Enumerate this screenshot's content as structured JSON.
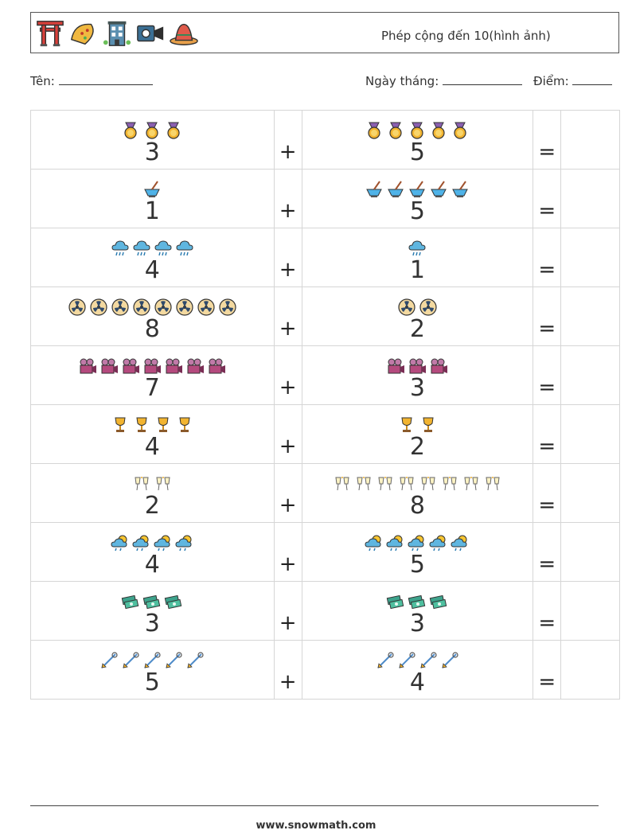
{
  "header": {
    "title": "Phép cộng đến 10(hình ảnh)",
    "icons": [
      "torii-gate-icon",
      "taco-icon",
      "building-icon",
      "camcorder-icon",
      "sombrero-icon"
    ]
  },
  "fields": {
    "name_label": "Tên:",
    "date_label": "Ngày tháng:",
    "score_label": "Điểm:"
  },
  "rows": [
    {
      "icon": "medal",
      "a": 3,
      "b": 5
    },
    {
      "icon": "mortar",
      "a": 1,
      "b": 5
    },
    {
      "icon": "rain-cloud",
      "a": 4,
      "b": 1
    },
    {
      "icon": "radiation",
      "a": 8,
      "b": 2
    },
    {
      "icon": "movie-camera",
      "a": 7,
      "b": 3
    },
    {
      "icon": "trophy",
      "a": 4,
      "b": 2
    },
    {
      "icon": "toast-glasses",
      "a": 2,
      "b": 8
    },
    {
      "icon": "sun-rain-cloud",
      "a": 4,
      "b": 5
    },
    {
      "icon": "money",
      "a": 3,
      "b": 3
    },
    {
      "icon": "dart-tool",
      "a": 5,
      "b": 4
    }
  ],
  "operators": {
    "plus": "+",
    "equals": "="
  },
  "footer": "www.snowmath.com"
}
